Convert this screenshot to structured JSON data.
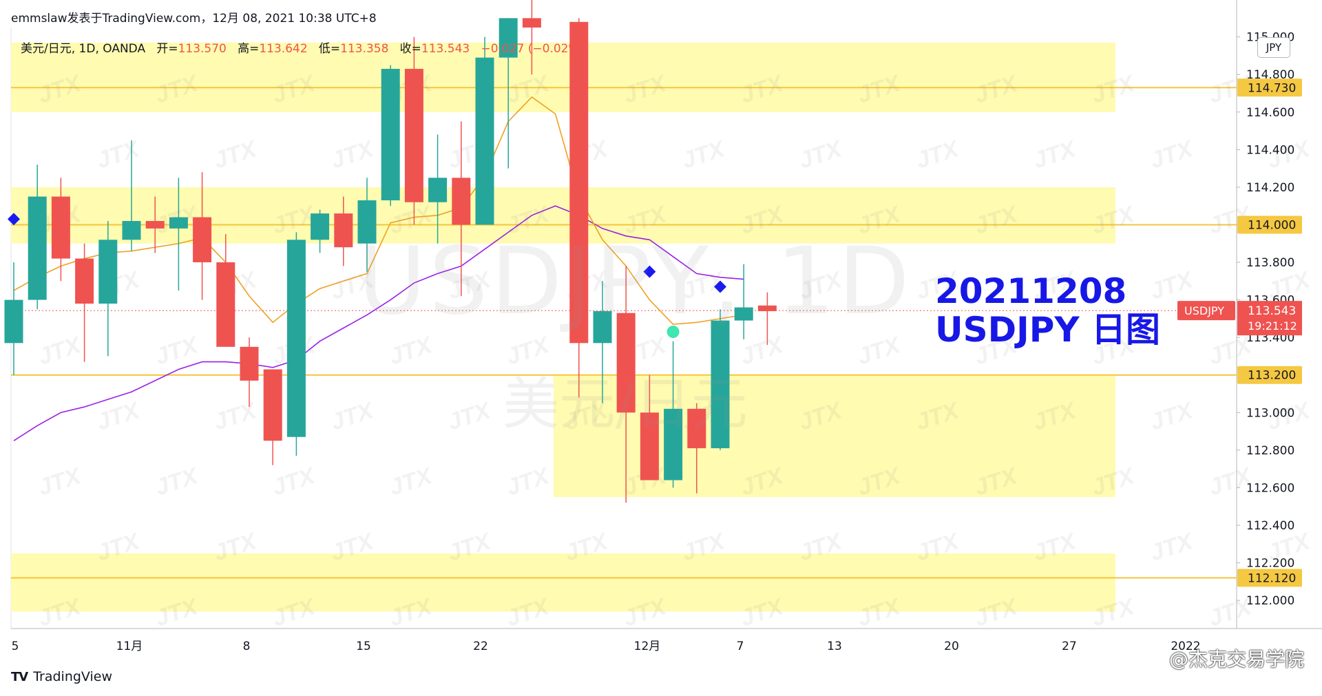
{
  "header": {
    "publish_line": "emmslaw发表于TradingView.com，12月 08, 2021 10:38 UTC+8",
    "symbol_line": "美元/日元, 1D, OANDA",
    "ohlc": [
      {
        "label": "开=",
        "value": "113.570"
      },
      {
        "label": "高=",
        "value": "113.642"
      },
      {
        "label": "低=",
        "value": "113.358"
      },
      {
        "label": "收=",
        "value": "113.543"
      }
    ],
    "change": "−0.027 (−0.02%)"
  },
  "watermark": {
    "symbol": "USDJPY, 1D",
    "name": "美元/日元"
  },
  "annotation": {
    "date": "20211208",
    "title": "USDJPY 日图"
  },
  "currency_button": "JPY",
  "price_label": {
    "symbol": "USDJPY",
    "price": "113.543",
    "countdown": "19:21:12"
  },
  "footer": {
    "brand": "TradingView",
    "weibo": "@杰克交易学院"
  },
  "colors": {
    "up": "#26a69a",
    "down": "#ef5350",
    "zone": "#fffbb0",
    "level": "#f5c53c",
    "sma_fast": "#f0a022",
    "sma_slow": "#9a20e6",
    "annotation": "#1818e6"
  },
  "chart_data": {
    "type": "candlestick",
    "ylim": [
      111.85,
      115.05
    ],
    "y_ticks": [
      "112.000",
      "112.200",
      "112.400",
      "112.600",
      "112.800",
      "113.000",
      "113.400",
      "113.600",
      "113.800",
      "114.000",
      "114.200",
      "114.400",
      "114.600",
      "114.800",
      "115.000"
    ],
    "x_ticks": [
      "5",
      "11月",
      "8",
      "15",
      "22",
      "12月",
      "7",
      "13",
      "20",
      "27",
      "2022"
    ],
    "key_levels": [
      "114.730",
      "114.000",
      "113.200",
      "112.120"
    ],
    "zones": [
      [
        114.6,
        114.97
      ],
      [
        113.9,
        114.2
      ],
      [
        112.55,
        113.2
      ],
      [
        111.94,
        112.25
      ]
    ],
    "candles": [
      {
        "i": 0,
        "o": 113.37,
        "h": 113.8,
        "l": 113.2,
        "c": 113.6
      },
      {
        "i": 1,
        "o": 113.6,
        "h": 114.32,
        "l": 113.55,
        "c": 114.15
      },
      {
        "i": 2,
        "o": 114.15,
        "h": 114.25,
        "l": 113.7,
        "c": 113.82
      },
      {
        "i": 3,
        "o": 113.82,
        "h": 113.9,
        "l": 113.27,
        "c": 113.58
      },
      {
        "i": 4,
        "o": 113.58,
        "h": 114.02,
        "l": 113.3,
        "c": 113.92
      },
      {
        "i": 5,
        "o": 113.92,
        "h": 114.45,
        "l": 113.86,
        "c": 114.02
      },
      {
        "i": 6,
        "o": 114.02,
        "h": 114.15,
        "l": 113.85,
        "c": 113.98
      },
      {
        "i": 7,
        "o": 113.98,
        "h": 114.25,
        "l": 113.65,
        "c": 114.04
      },
      {
        "i": 8,
        "o": 114.04,
        "h": 114.28,
        "l": 113.6,
        "c": 113.8
      },
      {
        "i": 9,
        "o": 113.8,
        "h": 113.95,
        "l": 113.35,
        "c": 113.35
      },
      {
        "i": 10,
        "o": 113.35,
        "h": 113.4,
        "l": 113.03,
        "c": 113.17
      },
      {
        "i": 11,
        "o": 113.23,
        "h": 113.23,
        "l": 112.72,
        "c": 112.85
      },
      {
        "i": 12,
        "o": 112.87,
        "h": 113.96,
        "l": 112.77,
        "c": 113.92
      },
      {
        "i": 13,
        "o": 113.92,
        "h": 114.08,
        "l": 113.85,
        "c": 114.06
      },
      {
        "i": 14,
        "o": 114.06,
        "h": 114.15,
        "l": 113.78,
        "c": 113.88
      },
      {
        "i": 15,
        "o": 113.9,
        "h": 114.25,
        "l": 113.75,
        "c": 114.13
      },
      {
        "i": 16,
        "o": 114.13,
        "h": 114.85,
        "l": 114.1,
        "c": 114.83
      },
      {
        "i": 17,
        "o": 114.83,
        "h": 115.0,
        "l": 114.0,
        "c": 114.12
      },
      {
        "i": 18,
        "o": 114.12,
        "h": 114.48,
        "l": 113.9,
        "c": 114.25
      },
      {
        "i": 19,
        "o": 114.25,
        "h": 114.55,
        "l": 113.62,
        "c": 114.0
      },
      {
        "i": 20,
        "o": 114.0,
        "h": 115.0,
        "l": 114.0,
        "c": 114.89
      },
      {
        "i": 21,
        "o": 114.89,
        "h": 115.1,
        "l": 114.3,
        "c": 115.1
      },
      {
        "i": 22,
        "o": 115.1,
        "h": 115.25,
        "l": 114.8,
        "c": 115.05
      },
      {
        "i": 24,
        "o": 115.08,
        "h": 115.1,
        "l": 113.08,
        "c": 113.37
      },
      {
        "i": 25,
        "o": 113.37,
        "h": 113.7,
        "l": 113.05,
        "c": 113.54
      },
      {
        "i": 26,
        "o": 113.53,
        "h": 113.78,
        "l": 112.52,
        "c": 113.0
      },
      {
        "i": 27,
        "o": 113.0,
        "h": 113.2,
        "l": 112.65,
        "c": 112.64
      },
      {
        "i": 28,
        "o": 112.64,
        "h": 113.38,
        "l": 112.6,
        "c": 113.02
      },
      {
        "i": 29,
        "o": 113.02,
        "h": 113.05,
        "l": 112.57,
        "c": 112.81
      },
      {
        "i": 30,
        "o": 112.81,
        "h": 113.55,
        "l": 112.8,
        "c": 113.49
      },
      {
        "i": 31,
        "o": 113.49,
        "h": 113.79,
        "l": 113.39,
        "c": 113.56
      },
      {
        "i": 32,
        "o": 113.57,
        "h": 113.64,
        "l": 113.36,
        "c": 113.54
      }
    ],
    "sma_fast": [
      113.65,
      113.72,
      113.78,
      113.82,
      113.85,
      113.86,
      113.88,
      113.9,
      113.93,
      113.8,
      113.62,
      113.48,
      113.58,
      113.66,
      113.7,
      113.74,
      114.01,
      114.04,
      114.05,
      114.09,
      114.26,
      114.55,
      114.68,
      114.59,
      114.15,
      113.92,
      113.78,
      113.6,
      113.47,
      113.48,
      113.5,
      113.52
    ],
    "sma_slow": [
      112.85,
      112.93,
      113.0,
      113.03,
      113.07,
      113.11,
      113.17,
      113.23,
      113.27,
      113.27,
      113.26,
      113.24,
      113.28,
      113.38,
      113.45,
      113.52,
      113.6,
      113.69,
      113.74,
      113.78,
      113.87,
      113.96,
      114.05,
      114.1,
      114.05,
      113.98,
      113.94,
      113.92,
      113.83,
      113.74,
      113.72,
      113.71
    ],
    "markers": [
      {
        "type": "diamond",
        "i": 0,
        "y": 114.03
      },
      {
        "type": "diamond",
        "i": 27,
        "y": 113.75
      },
      {
        "type": "diamond",
        "i": 30,
        "y": 113.67
      },
      {
        "type": "circle",
        "i": 28,
        "y": 113.43
      }
    ]
  }
}
